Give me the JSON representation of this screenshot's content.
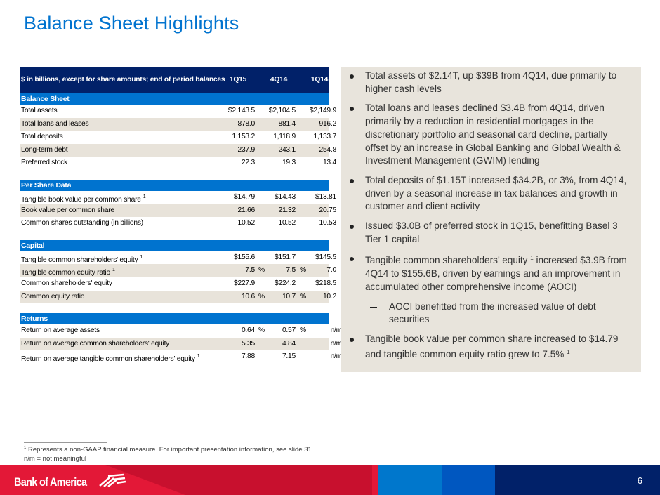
{
  "title": "Balance Sheet Highlights",
  "table": {
    "header": {
      "label": "$ in billions, except for share amounts; end of period balances",
      "periods": [
        "1Q15",
        "4Q14",
        "1Q14"
      ]
    },
    "sections": [
      {
        "name": "Balance Sheet",
        "rows": [
          {
            "label": "Total assets",
            "sup": "",
            "values": [
              "$2,143.5",
              "$2,104.5",
              "$2,149.9"
            ],
            "pct": [
              "",
              "",
              ""
            ]
          },
          {
            "label": "Total loans and leases",
            "sup": "",
            "values": [
              "878.0",
              "881.4",
              "916.2"
            ],
            "pct": [
              "",
              "",
              ""
            ]
          },
          {
            "label": "Total deposits",
            "sup": "",
            "values": [
              "1,153.2",
              "1,118.9",
              "1,133.7"
            ],
            "pct": [
              "",
              "",
              ""
            ]
          },
          {
            "label": "Long-term debt",
            "sup": "",
            "values": [
              "237.9",
              "243.1",
              "254.8"
            ],
            "pct": [
              "",
              "",
              ""
            ]
          },
          {
            "label": "Preferred stock",
            "sup": "",
            "values": [
              "22.3",
              "19.3",
              "13.4"
            ],
            "pct": [
              "",
              "",
              ""
            ]
          }
        ]
      },
      {
        "name": "Per Share Data",
        "rows": [
          {
            "label": "Tangible book value per common share",
            "sup": "1",
            "values": [
              "$14.79",
              "$14.43",
              "$13.81"
            ],
            "pct": [
              "",
              "",
              ""
            ]
          },
          {
            "label": "Book value per common share",
            "sup": "",
            "values": [
              "21.66",
              "21.32",
              "20.75"
            ],
            "pct": [
              "",
              "",
              ""
            ]
          },
          {
            "label": "Common shares outstanding (in billions)",
            "sup": "",
            "values": [
              "10.52",
              "10.52",
              "10.53"
            ],
            "pct": [
              "",
              "",
              ""
            ]
          }
        ]
      },
      {
        "name": "Capital",
        "rows": [
          {
            "label": "Tangible common shareholders' equity",
            "sup": "1",
            "values": [
              "$155.6",
              "$151.7",
              "$145.5"
            ],
            "pct": [
              "",
              "",
              ""
            ]
          },
          {
            "label": "Tangible common equity ratio",
            "sup": "1",
            "values": [
              "7.5",
              "7.5",
              "7.0"
            ],
            "pct": [
              "%",
              "%",
              "%"
            ]
          },
          {
            "label": "Common shareholders' equity",
            "sup": "",
            "values": [
              "$227.9",
              "$224.2",
              "$218.5"
            ],
            "pct": [
              "",
              "",
              ""
            ]
          },
          {
            "label": "Common equity ratio",
            "sup": "",
            "values": [
              "10.6",
              "10.7",
              "10.2"
            ],
            "pct": [
              "%",
              "%",
              "%"
            ]
          }
        ]
      },
      {
        "name": "Returns",
        "rows": [
          {
            "label": "Return on average assets",
            "sup": "",
            "values": [
              "0.64",
              "0.57",
              "n/m"
            ],
            "pct": [
              "%",
              "%",
              ""
            ]
          },
          {
            "label": "Return on average common shareholders' equity",
            "sup": "",
            "values": [
              "5.35",
              "4.84",
              "n/m"
            ],
            "pct": [
              "",
              "",
              ""
            ]
          },
          {
            "label": "Return on average tangible common shareholders' equity",
            "sup": "1",
            "values": [
              "7.88",
              "7.15",
              "n/m"
            ],
            "pct": [
              "",
              "",
              ""
            ]
          }
        ]
      }
    ]
  },
  "bullets": [
    {
      "level": 1,
      "pre": "Total assets of $2.14T, up $39B from 4Q14, due primarily to higher cash levels",
      "sup": "",
      "post": ""
    },
    {
      "level": 1,
      "pre": "Total loans and leases declined $3.4B from 4Q14, driven primarily by a reduction in residential mortgages in the discretionary portfolio and seasonal card decline, partially offset by an increase in Global Banking and Global Wealth & Investment Management (GWIM) lending",
      "sup": "",
      "post": ""
    },
    {
      "level": 1,
      "pre": "Total deposits of $1.15T increased $34.2B, or 3%, from 4Q14, driven by a seasonal increase in tax balances and growth in customer and client activity",
      "sup": "",
      "post": ""
    },
    {
      "level": 1,
      "pre": "Issued $3.0B of preferred stock in 1Q15, benefitting Basel 3 Tier 1 capital",
      "sup": "",
      "post": ""
    },
    {
      "level": 1,
      "pre": "Tangible common shareholders’ equity ",
      "sup": "1",
      "post": " increased $3.9B from 4Q14 to $155.6B, driven by earnings and an improvement in accumulated other comprehensive income (AOCI)"
    },
    {
      "level": 2,
      "pre": "AOCI benefitted from the increased value of debt securities",
      "sup": "",
      "post": ""
    },
    {
      "level": 1,
      "pre": "Tangible book value per common share increased to $14.79 and tangible common equity ratio grew to 7.5% ",
      "sup": "1",
      "post": ""
    }
  ],
  "footnotes": {
    "sup": "1",
    "note1": "Represents a non-GAAP financial measure. For important presentation information, see slide 31.",
    "note2": "n/m = not meaningful"
  },
  "footer": {
    "logo": "Bank of America",
    "page": "6"
  },
  "colors": {
    "title": "#0073cf",
    "navy": "#012169",
    "band": "#0073cf",
    "red": "#e31837",
    "shade": "#e8e3da"
  }
}
